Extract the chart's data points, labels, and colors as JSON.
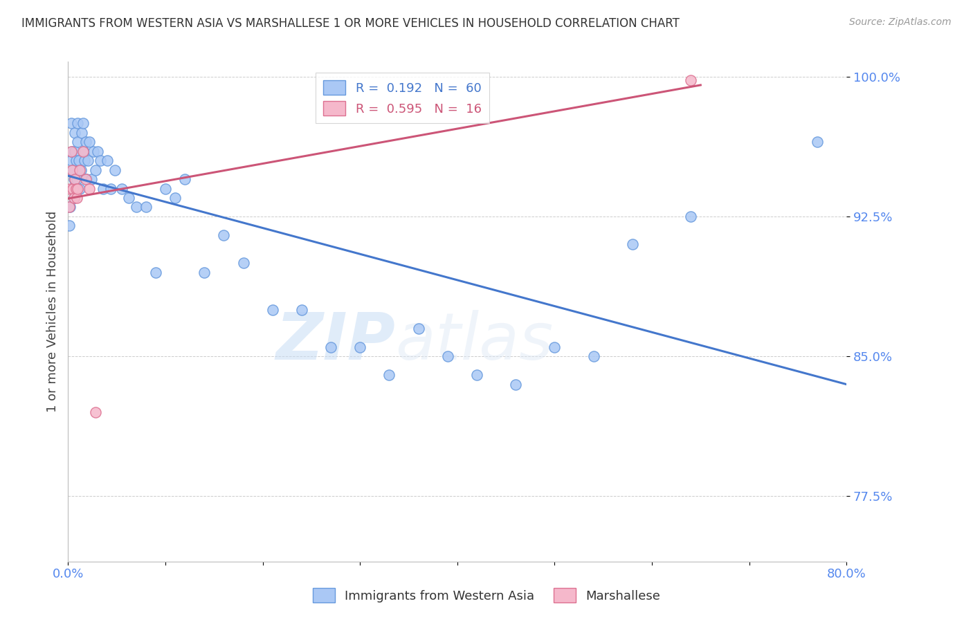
{
  "title": "IMMIGRANTS FROM WESTERN ASIA VS MARSHALLESE 1 OR MORE VEHICLES IN HOUSEHOLD CORRELATION CHART",
  "source": "Source: ZipAtlas.com",
  "ylabel": "1 or more Vehicles in Household",
  "xlim": [
    0.0,
    0.8
  ],
  "ylim": [
    0.74,
    1.008
  ],
  "xticks": [
    0.0,
    0.1,
    0.2,
    0.3,
    0.4,
    0.5,
    0.6,
    0.7,
    0.8
  ],
  "xticklabels": [
    "0.0%",
    "",
    "",
    "",
    "",
    "",
    "",
    "",
    "80.0%"
  ],
  "ytick_positions": [
    0.775,
    0.85,
    0.925,
    1.0
  ],
  "ytick_labels": [
    "77.5%",
    "85.0%",
    "92.5%",
    "100.0%"
  ],
  "blue_label": "Immigrants from Western Asia",
  "pink_label": "Marshallese",
  "blue_color": "#aac8f5",
  "blue_edge": "#6699dd",
  "pink_color": "#f5b8cb",
  "pink_edge": "#dd7090",
  "blue_line_color": "#4477cc",
  "pink_line_color": "#cc5577",
  "legend_R_blue_val": "0.192",
  "legend_N_blue_val": "60",
  "legend_R_pink_val": "0.595",
  "legend_N_pink_val": "16",
  "blue_x": [
    0.001,
    0.002,
    0.003,
    0.003,
    0.004,
    0.005,
    0.005,
    0.006,
    0.006,
    0.007,
    0.007,
    0.008,
    0.009,
    0.01,
    0.01,
    0.011,
    0.012,
    0.013,
    0.014,
    0.015,
    0.016,
    0.017,
    0.018,
    0.019,
    0.02,
    0.022,
    0.024,
    0.026,
    0.028,
    0.03,
    0.033,
    0.036,
    0.04,
    0.044,
    0.048,
    0.055,
    0.062,
    0.07,
    0.08,
    0.09,
    0.1,
    0.11,
    0.12,
    0.14,
    0.16,
    0.18,
    0.21,
    0.24,
    0.27,
    0.3,
    0.33,
    0.36,
    0.39,
    0.42,
    0.46,
    0.5,
    0.54,
    0.58,
    0.64,
    0.77
  ],
  "blue_y": [
    0.92,
    0.93,
    0.955,
    0.975,
    0.96,
    0.94,
    0.95,
    0.945,
    0.935,
    0.96,
    0.97,
    0.955,
    0.945,
    0.965,
    0.975,
    0.955,
    0.94,
    0.95,
    0.97,
    0.975,
    0.96,
    0.955,
    0.965,
    0.945,
    0.955,
    0.965,
    0.945,
    0.96,
    0.95,
    0.96,
    0.955,
    0.94,
    0.955,
    0.94,
    0.95,
    0.94,
    0.935,
    0.93,
    0.93,
    0.895,
    0.94,
    0.935,
    0.945,
    0.895,
    0.915,
    0.9,
    0.875,
    0.875,
    0.855,
    0.855,
    0.84,
    0.865,
    0.85,
    0.84,
    0.835,
    0.855,
    0.85,
    0.91,
    0.925,
    0.965
  ],
  "pink_x": [
    0.001,
    0.002,
    0.003,
    0.004,
    0.005,
    0.006,
    0.007,
    0.008,
    0.009,
    0.01,
    0.012,
    0.015,
    0.018,
    0.022,
    0.028,
    0.64
  ],
  "pink_y": [
    0.93,
    0.94,
    0.96,
    0.95,
    0.94,
    0.935,
    0.945,
    0.94,
    0.935,
    0.94,
    0.95,
    0.96,
    0.945,
    0.94,
    0.82,
    0.998
  ],
  "watermark_zip": "ZIP",
  "watermark_atlas": "atlas",
  "background_color": "#ffffff",
  "axis_label_color": "#5588ee",
  "title_color": "#333333",
  "grid_color": "#cccccc",
  "grid_style": "--",
  "marker_size": 120
}
